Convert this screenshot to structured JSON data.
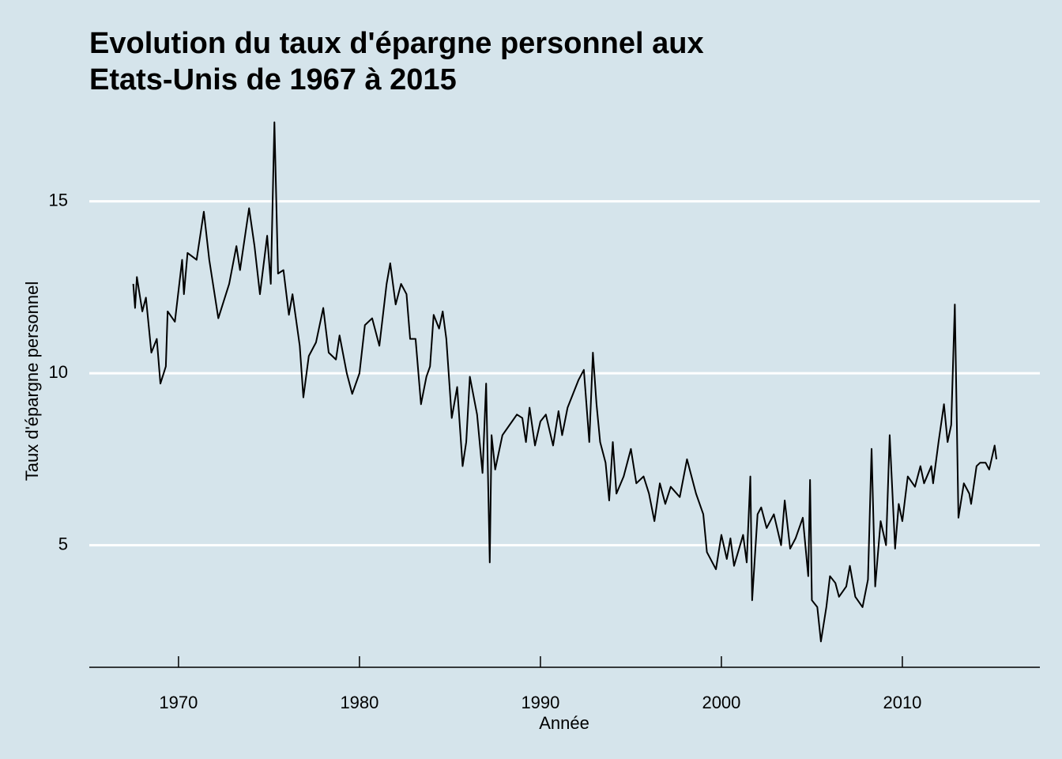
{
  "chart_data": {
    "type": "line",
    "title": [
      "Evolution du taux d'épargne personnel aux",
      "Etats-Unis de 1967 à 2015"
    ],
    "x_label": "Année",
    "y_label": "Taux d'épargne personnel",
    "xlim": [
      1965.07,
      2017.6
    ],
    "ylim": [
      1.45,
      18.05
    ],
    "xticks": [
      1970,
      1980,
      1990,
      2000,
      2010
    ],
    "yticks": [
      5,
      10,
      15
    ],
    "grid": true,
    "x": [
      1967.5,
      1967.6,
      1967.7,
      1968.0,
      1968.2,
      1968.5,
      1968.8,
      1969.0,
      1969.3,
      1969.4,
      1969.8,
      1970.2,
      1970.3,
      1970.5,
      1971.0,
      1971.4,
      1971.7,
      1972.2,
      1972.8,
      1973.2,
      1973.4,
      1973.9,
      1974.2,
      1974.5,
      1974.9,
      1975.1,
      1975.3,
      1975.5,
      1975.8,
      1976.1,
      1976.3,
      1976.7,
      1976.9,
      1977.2,
      1977.6,
      1978.0,
      1978.3,
      1978.7,
      1978.9,
      1979.3,
      1979.6,
      1980.0,
      1980.3,
      1980.7,
      1981.1,
      1981.5,
      1981.7,
      1982.0,
      1982.3,
      1982.6,
      1982.8,
      1983.1,
      1983.4,
      1983.7,
      1983.9,
      1984.1,
      1984.4,
      1984.6,
      1984.8,
      1985.1,
      1985.4,
      1985.7,
      1985.9,
      1986.1,
      1986.5,
      1986.8,
      1987.0,
      1987.2,
      1987.3,
      1987.5,
      1987.9,
      1988.3,
      1988.7,
      1989.0,
      1989.2,
      1989.4,
      1989.7,
      1990.0,
      1990.3,
      1990.7,
      1991.0,
      1991.2,
      1991.5,
      1991.8,
      1992.1,
      1992.4,
      1992.7,
      1992.9,
      1993.1,
      1993.3,
      1993.6,
      1993.8,
      1994.0,
      1994.2,
      1994.6,
      1995.0,
      1995.3,
      1995.7,
      1996.0,
      1996.3,
      1996.6,
      1996.9,
      1997.2,
      1997.7,
      1998.1,
      1998.6,
      1999.0,
      1999.2,
      1999.7,
      2000.0,
      2000.3,
      2000.5,
      2000.7,
      2001.2,
      2001.4,
      2001.6,
      2001.7,
      2002.0,
      2002.2,
      2002.5,
      2002.9,
      2003.3,
      2003.5,
      2003.8,
      2004.1,
      2004.5,
      2004.8,
      2004.9,
      2005.0,
      2005.3,
      2005.5,
      2005.8,
      2006.0,
      2006.3,
      2006.5,
      2006.9,
      2007.1,
      2007.4,
      2007.8,
      2008.1,
      2008.3,
      2008.5,
      2008.8,
      2009.1,
      2009.3,
      2009.6,
      2009.8,
      2010.0,
      2010.3,
      2010.7,
      2011.0,
      2011.2,
      2011.6,
      2011.7,
      2012.0,
      2012.3,
      2012.5,
      2012.7,
      2012.9,
      2013.1,
      2013.4,
      2013.7,
      2013.8,
      2014.1,
      2014.3,
      2014.6,
      2014.8,
      2015.1,
      2015.2
    ],
    "series": [
      {
        "color": "#000000",
        "values": [
          12.6,
          11.9,
          12.8,
          11.8,
          12.2,
          10.6,
          11.0,
          9.7,
          10.2,
          11.8,
          11.5,
          13.3,
          12.3,
          13.5,
          13.3,
          14.7,
          13.3,
          11.6,
          12.6,
          13.7,
          13.0,
          14.8,
          13.7,
          12.3,
          14.0,
          12.6,
          17.3,
          12.9,
          13.0,
          11.7,
          12.3,
          10.8,
          9.3,
          10.5,
          10.9,
          11.9,
          10.6,
          10.4,
          11.1,
          10.0,
          9.4,
          10.0,
          11.4,
          11.6,
          10.8,
          12.6,
          13.2,
          12.0,
          12.6,
          12.3,
          11.0,
          11.0,
          9.1,
          9.9,
          10.2,
          11.7,
          11.3,
          11.8,
          11.0,
          8.7,
          9.6,
          7.3,
          8.0,
          9.9,
          8.8,
          7.1,
          9.7,
          4.5,
          8.2,
          7.2,
          8.2,
          8.5,
          8.8,
          8.7,
          8.0,
          9.0,
          7.9,
          8.6,
          8.8,
          7.9,
          8.9,
          8.2,
          9.0,
          9.4,
          9.8,
          10.1,
          8.0,
          10.6,
          9.1,
          8.0,
          7.4,
          6.3,
          8.0,
          6.5,
          7.0,
          7.8,
          6.8,
          7.0,
          6.5,
          5.7,
          6.8,
          6.2,
          6.7,
          6.4,
          7.5,
          6.5,
          5.9,
          4.8,
          4.3,
          5.3,
          4.6,
          5.2,
          4.4,
          5.3,
          4.5,
          7.0,
          3.4,
          5.9,
          6.1,
          5.5,
          5.9,
          5.0,
          6.3,
          4.9,
          5.2,
          5.8,
          4.1,
          6.9,
          3.4,
          3.2,
          2.2,
          3.2,
          4.1,
          3.9,
          3.5,
          3.8,
          4.4,
          3.5,
          3.2,
          4.0,
          7.8,
          3.8,
          5.7,
          5.0,
          8.2,
          4.9,
          6.2,
          5.7,
          7.0,
          6.7,
          7.3,
          6.8,
          7.3,
          6.8,
          8.0,
          9.1,
          8.0,
          8.5,
          12.0,
          5.8,
          6.8,
          6.5,
          6.2,
          7.3,
          7.4,
          7.4,
          7.2,
          7.9,
          7.5
        ]
      }
    ]
  }
}
